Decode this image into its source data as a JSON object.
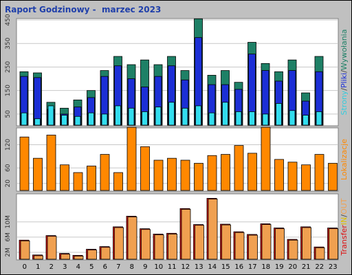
{
  "header": {
    "title": "Raport Godzinowy -  marzec 2023"
  },
  "colors": {
    "background": "#c0c0c0",
    "panel": "#ffffff",
    "grid": "#c8c8c8",
    "wyw": "#1e8066",
    "pliki": "#1b2fd6",
    "strony": "#33ddee",
    "lokal": "#ff8800",
    "trans_in": "#dd1111",
    "trans_out": "#f0a050",
    "title": "#1f3faa"
  },
  "chart_data": [
    {
      "type": "bar",
      "id": "requests",
      "categories": [
        "0",
        "1",
        "2",
        "3",
        "4",
        "5",
        "6",
        "7",
        "8",
        "9",
        "10",
        "11",
        "12",
        "13",
        "14",
        "15",
        "16",
        "17",
        "18",
        "19",
        "20",
        "21",
        "22",
        "23"
      ],
      "ylim": [
        0,
        450
      ],
      "yticks": [
        "50",
        "150",
        "250",
        "350",
        "450"
      ],
      "side_label": [
        {
          "text": "Strony",
          "color": "#33ccdd"
        },
        {
          "text": "/",
          "color": "#444444"
        },
        {
          "text": "Pliki",
          "color": "#1b2fd6"
        },
        {
          "text": "/",
          "color": "#444444"
        },
        {
          "text": "Wywołania",
          "color": "#1e8066"
        }
      ],
      "series": [
        {
          "name": "Wywołania",
          "values": [
            230,
            225,
            100,
            75,
            110,
            150,
            235,
            295,
            260,
            280,
            260,
            295,
            235,
            455,
            215,
            235,
            185,
            355,
            265,
            230,
            280,
            140,
            295,
            0
          ]
        },
        {
          "name": "Pliki",
          "values": [
            210,
            205,
            70,
            50,
            80,
            120,
            210,
            255,
            200,
            165,
            210,
            255,
            195,
            375,
            175,
            175,
            155,
            305,
            235,
            190,
            235,
            105,
            230,
            0
          ]
        },
        {
          "name": "Strony",
          "values": [
            55,
            30,
            85,
            45,
            40,
            55,
            50,
            85,
            75,
            60,
            80,
            100,
            75,
            85,
            55,
            100,
            60,
            60,
            50,
            95,
            65,
            45,
            60,
            0
          ]
        }
      ]
    },
    {
      "type": "bar",
      "id": "lokalizacje",
      "categories": [
        "0",
        "1",
        "2",
        "3",
        "4",
        "5",
        "6",
        "7",
        "8",
        "9",
        "10",
        "11",
        "12",
        "13",
        "14",
        "15",
        "16",
        "17",
        "18",
        "19",
        "20",
        "21",
        "22",
        "23"
      ],
      "ylim": [
        0,
        160
      ],
      "yticks": [
        "20",
        "60",
        "120"
      ],
      "side_label": [
        {
          "text": "Lokalizacje",
          "color": "#ff8800"
        }
      ],
      "series": [
        {
          "name": "Lokalizacje",
          "values": [
            140,
            85,
            145,
            68,
            48,
            65,
            95,
            48,
            165,
            115,
            80,
            85,
            80,
            72,
            92,
            95,
            118,
            98,
            165,
            82,
            75,
            68,
            95,
            72
          ]
        }
      ]
    },
    {
      "type": "bar",
      "id": "transfer",
      "categories": [
        "0",
        "1",
        "2",
        "3",
        "4",
        "5",
        "6",
        "7",
        "8",
        "9",
        "10",
        "11",
        "12",
        "13",
        "14",
        "15",
        "16",
        "17",
        "18",
        "19",
        "20",
        "21",
        "22",
        "23"
      ],
      "ylim": [
        0,
        17
      ],
      "yticks": [
        "2M",
        "6M",
        "10M"
      ],
      "side_label": [
        {
          "text": "Transfer",
          "color": "#dd1111"
        },
        {
          "text": "IN",
          "color": "#e0c000"
        },
        {
          "text": "/",
          "color": "#444444"
        },
        {
          "text": "OUT",
          "color": "#f0a050"
        }
      ],
      "series": [
        {
          "name": "IN",
          "values": [
            5.2,
            1.3,
            6.4,
            1.7,
            1.2,
            2.8,
            3.5,
            8.7,
            11.5,
            8.2,
            6.8,
            7.0,
            13.5,
            9.3,
            16.2,
            9.4,
            7.4,
            6.7,
            9.5,
            8.4,
            5.4,
            8.7,
            3.4,
            8.4
          ]
        },
        {
          "name": "OUT",
          "values": [
            5.0,
            1.1,
            6.2,
            1.5,
            1.0,
            2.6,
            3.3,
            8.5,
            11.3,
            8.0,
            6.6,
            6.8,
            13.3,
            9.1,
            16.0,
            9.2,
            7.2,
            6.5,
            9.3,
            8.2,
            5.2,
            8.5,
            3.2,
            8.2
          ]
        }
      ]
    }
  ]
}
